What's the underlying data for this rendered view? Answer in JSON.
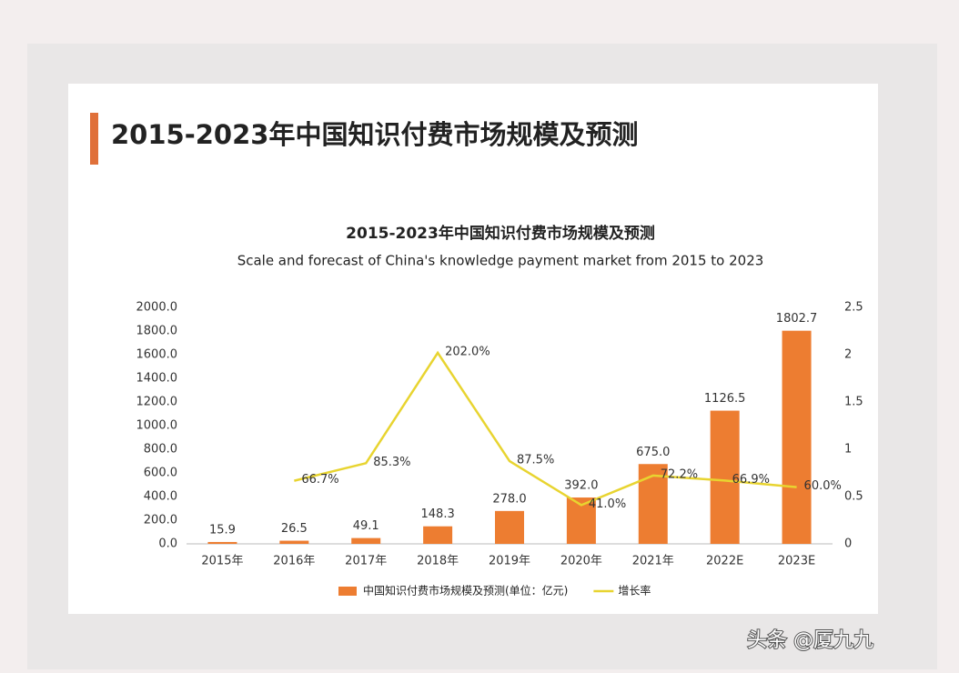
{
  "header": {
    "title": "2015-2023年中国知识付费市场规模及预测"
  },
  "chart_data": {
    "type": "bar",
    "title": "2015-2023年中国知识付费市场规模及预测",
    "subtitle": "Scale and forecast of China's knowledge payment market from 2015 to 2023",
    "categories": [
      "2015年",
      "2016年",
      "2017年",
      "2018年",
      "2019年",
      "2020年",
      "2021年",
      "2022E",
      "2023E"
    ],
    "series": [
      {
        "name": "中国知识付费市场规模及预测(单位：亿元)",
        "type": "bar",
        "color": "#ed7d31",
        "values": [
          15.9,
          26.5,
          49.1,
          148.3,
          278,
          392,
          675,
          1126.5,
          1802.7
        ],
        "value_labels": [
          "15.9",
          "26.5",
          "49.1",
          "148.3",
          "278.0",
          "392.0",
          "675.0",
          "1126.5",
          "1802.7"
        ]
      },
      {
        "name": "增长率",
        "type": "line",
        "axis": "y2",
        "color": "#e8d430",
        "values": [
          null,
          0.667,
          0.853,
          2.02,
          0.875,
          0.41,
          0.722,
          0.669,
          0.6
        ],
        "value_labels": [
          null,
          "66.7%",
          "85.3%",
          "202.0%",
          "87.5%",
          "41.0%",
          "72.2%",
          "66.9%",
          "60.0%"
        ]
      }
    ],
    "ylim": [
      0,
      2000
    ],
    "yticks": [
      {
        "value": 0,
        "label": "0.0"
      },
      {
        "value": 200,
        "label": "200.0"
      },
      {
        "value": 400,
        "label": "400.0"
      },
      {
        "value": 600,
        "label": "600.0"
      },
      {
        "value": 800,
        "label": "800.0"
      },
      {
        "value": 1000,
        "label": "1000.0"
      },
      {
        "value": 1200,
        "label": "1200.0"
      },
      {
        "value": 1400,
        "label": "1400.0"
      },
      {
        "value": 1600,
        "label": "1600.0"
      },
      {
        "value": 1800,
        "label": "1800.0"
      },
      {
        "value": 2000,
        "label": "2000.0"
      }
    ],
    "y2lim": [
      0,
      2.5
    ],
    "y2ticks": [
      0,
      0.5,
      1,
      1.5,
      2,
      2.5
    ],
    "grid": false,
    "legend": "bottom"
  },
  "watermark": "头条 @厦九九"
}
